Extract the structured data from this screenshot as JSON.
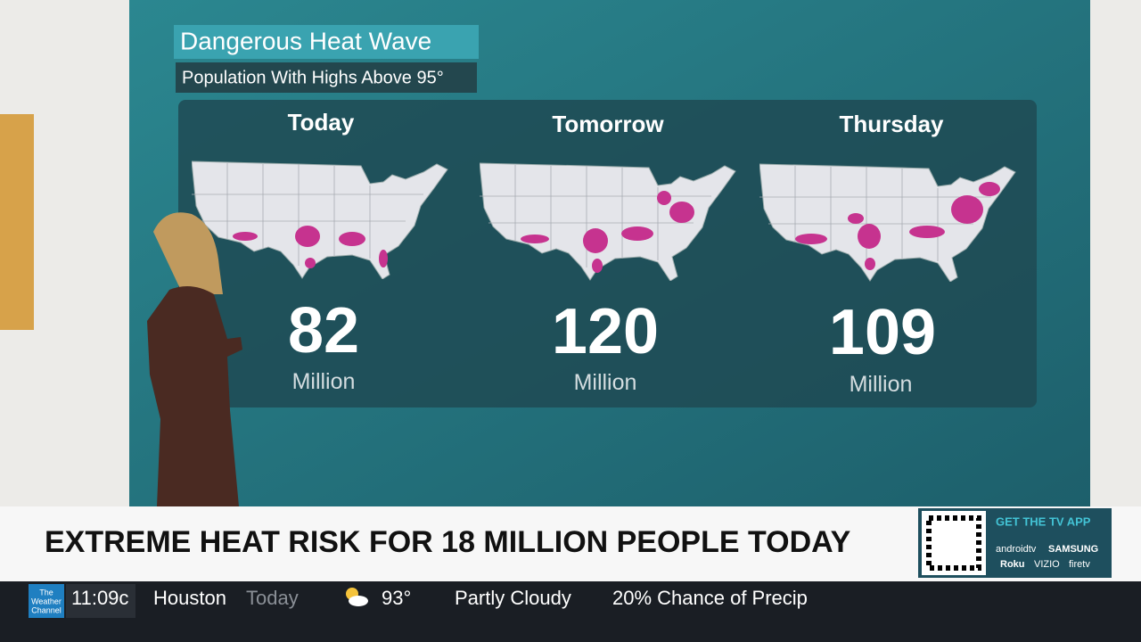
{
  "graphic": {
    "title": "Dangerous Heat Wave",
    "subtitle": "Population With Highs Above 95°",
    "panels": [
      {
        "day": "Today",
        "value": "82",
        "unit": "Million"
      },
      {
        "day": "Tomorrow",
        "value": "120",
        "unit": "Million"
      },
      {
        "day": "Thursday",
        "value": "109",
        "unit": "Million"
      }
    ]
  },
  "banner": {
    "headline": "EXTREME HEAT RISK FOR 18 MILLION PEOPLE TODAY",
    "app": {
      "title": "GET THE TV APP",
      "platforms": [
        "androidtv",
        "SAMSUNG",
        "Roku",
        "VIZIO",
        "firetv"
      ]
    }
  },
  "ticker": {
    "logo": [
      "The",
      "Weather",
      "Channel"
    ],
    "time": "11:09c",
    "city": "Houston",
    "period": "Today",
    "temperature": "93°",
    "condition": "Partly Cloudy",
    "precip": "20% Chance of Precip"
  }
}
